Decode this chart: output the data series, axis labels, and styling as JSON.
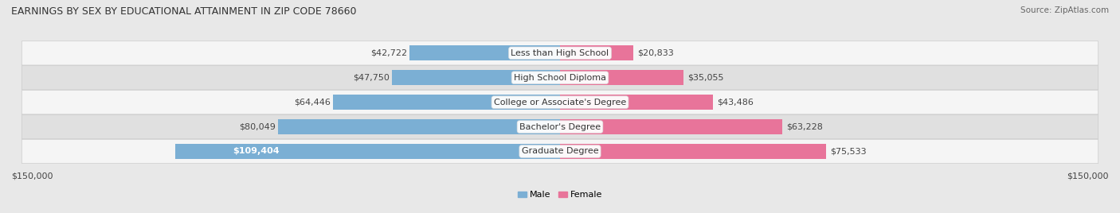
{
  "title": "EARNINGS BY SEX BY EDUCATIONAL ATTAINMENT IN ZIP CODE 78660",
  "source": "Source: ZipAtlas.com",
  "categories": [
    "Less than High School",
    "High School Diploma",
    "College or Associate's Degree",
    "Bachelor's Degree",
    "Graduate Degree"
  ],
  "male_values": [
    42722,
    47750,
    64446,
    80049,
    109404
  ],
  "female_values": [
    20833,
    35055,
    43486,
    63228,
    75533
  ],
  "male_color": "#7bafd4",
  "female_color": "#e8749a",
  "male_label": "Male",
  "female_label": "Female",
  "bar_height": 0.62,
  "xlim": 150000,
  "background_color": "#e8e8e8",
  "row_light": "#f5f5f5",
  "row_dark": "#e0e0e0",
  "title_fontsize": 9,
  "label_fontsize": 8,
  "tick_fontsize": 8,
  "source_fontsize": 7.5,
  "value_fontsize": 8
}
